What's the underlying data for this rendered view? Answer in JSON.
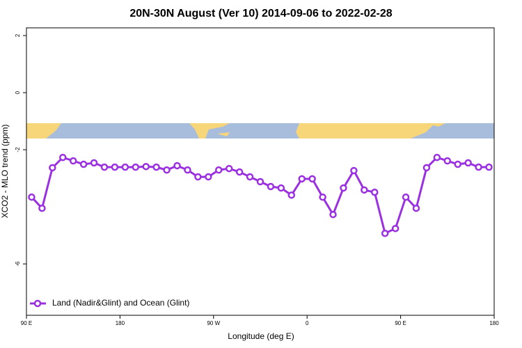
{
  "chart_data": {
    "type": "line",
    "title": "20N-30N August (Ver 10)   2014-09-06 to 2022-02-28",
    "x_label": "Longitude (deg E)",
    "y_label": "XCO2 - MLO trend (ppm)",
    "x": [
      95,
      105,
      115,
      125,
      135,
      145,
      155,
      165,
      175,
      185,
      195,
      205,
      215,
      225,
      235,
      245,
      255,
      265,
      275,
      285,
      295,
      305,
      315,
      325,
      335,
      345,
      355,
      365,
      375,
      385,
      395,
      405,
      415,
      425,
      435,
      445,
      455,
      465,
      475,
      485,
      495,
      505,
      515,
      525,
      535
    ],
    "series": [
      {
        "name": "Land (Nadir&Glint) and Ocean (Glint)",
        "color": "#9b30e0",
        "values": [
          -3.66,
          -4.05,
          -2.63,
          -2.27,
          -2.39,
          -2.51,
          -2.46,
          -2.61,
          -2.61,
          -2.61,
          -2.61,
          -2.59,
          -2.61,
          -2.71,
          -2.56,
          -2.71,
          -2.95,
          -2.95,
          -2.71,
          -2.66,
          -2.78,
          -2.95,
          -3.12,
          -3.29,
          -3.34,
          -3.59,
          -3.02,
          -3.02,
          -3.66,
          -4.27,
          -3.34,
          -2.73,
          -3.41,
          -3.49,
          -4.93,
          -4.76,
          -3.66,
          -4.05,
          -2.63,
          -2.27,
          -2.39,
          -2.51,
          -2.46,
          -2.61,
          -2.61
        ]
      }
    ],
    "xlim": [
      90,
      540
    ],
    "xticks": [
      {
        "value": 90,
        "label": "90 E"
      },
      {
        "value": 180,
        "label": "180"
      },
      {
        "value": 270,
        "label": "90 W"
      },
      {
        "value": 360,
        "label": "0"
      },
      {
        "value": 450,
        "label": "90 E"
      },
      {
        "value": 540,
        "label": "180"
      }
    ],
    "ylim": [
      -7.8,
      2.27
    ],
    "yticks": [
      -6,
      -2,
      0,
      2
    ],
    "legend": "bottomleft"
  }
}
